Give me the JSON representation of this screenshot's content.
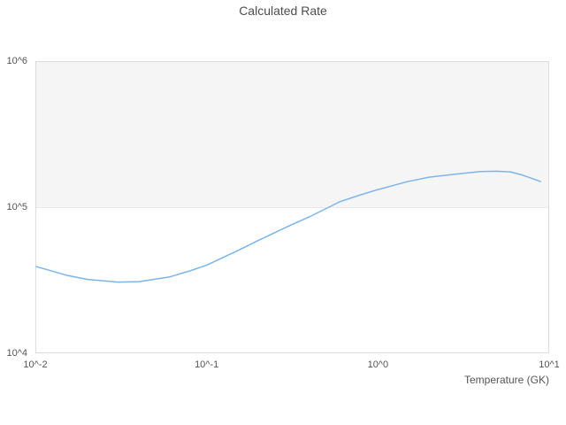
{
  "chart": {
    "colors": {
      "background": "#ffffff",
      "title_text": "#4d4d4d",
      "axis_text": "#555555",
      "plot_border": "#dcdcdc",
      "alternate_band": "#f5f5f5",
      "gridline": "#e9e9e9",
      "series_line": "#7cb5ec"
    }
  },
  "chart_data": {
    "type": "line",
    "title": "Calculated Rate",
    "xlabel": "Temperature (GK)",
    "ylabel": "",
    "x_scale": "log",
    "y_scale": "log",
    "xlim": [
      0.01,
      10
    ],
    "ylim": [
      10000,
      1000000
    ],
    "x_tick_values": [
      0.01,
      0.1,
      1,
      10
    ],
    "x_tick_labels": [
      "10^-2",
      "10^-1",
      "10^0",
      "10^1"
    ],
    "y_tick_values": [
      10000,
      100000,
      1000000
    ],
    "y_tick_labels": [
      "10^4",
      "10^5",
      "10^6"
    ],
    "alternate_band": {
      "from": 100000,
      "to": 1000000
    },
    "grid": "off",
    "legend": "none",
    "series": [
      {
        "name": "Calculated Rate",
        "x": [
          0.01,
          0.015,
          0.02,
          0.03,
          0.04,
          0.06,
          0.08,
          0.1,
          0.15,
          0.2,
          0.3,
          0.4,
          0.6,
          0.8,
          1.0,
          1.5,
          2.0,
          3.0,
          4.0,
          5.0,
          6.0,
          7.0,
          8.0,
          9.0
        ],
        "y": [
          39000,
          34000,
          31800,
          30500,
          30700,
          33000,
          36500,
          40000,
          50000,
          59000,
          74000,
          86000,
          109000,
          122000,
          132000,
          150000,
          161000,
          170000,
          176000,
          177000,
          175000,
          167000,
          158000,
          150000
        ]
      }
    ]
  }
}
